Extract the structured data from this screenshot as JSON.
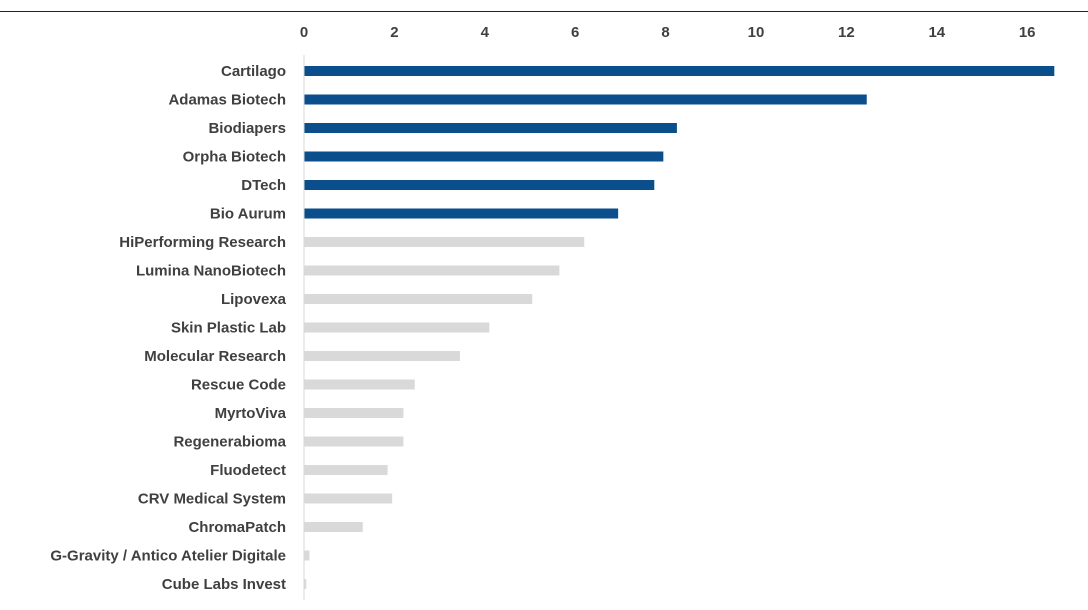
{
  "chart_data": {
    "type": "bar",
    "orientation": "horizontal",
    "title": "",
    "xlim": [
      0,
      17
    ],
    "x_ticks": [
      0,
      2,
      4,
      6,
      8,
      10,
      12,
      14,
      16
    ],
    "highlight_color": "#0a4f8c",
    "muted_color": "#d9d9d9",
    "highlight_count": 6,
    "categories": [
      "Cartilago",
      "Adamas Biotech",
      "Biodiapers",
      "Orpha Biotech",
      "DTech",
      "Bio Aurum",
      "HiPerforming Research",
      "Lumina NanoBiotech",
      "Lipovexa",
      "Skin Plastic Lab",
      "Molecular Research",
      "Rescue Code",
      "MyrtoViva",
      "Regenerabioma",
      "Fluodetect",
      "CRV Medical System",
      "ChromaPatch",
      "G-Gravity / Antico Atelier Digitale",
      "Cube Labs Invest"
    ],
    "values": [
      16.6,
      12.45,
      8.25,
      7.95,
      7.75,
      6.95,
      6.2,
      5.65,
      5.05,
      4.1,
      3.45,
      2.45,
      2.2,
      2.2,
      1.85,
      1.95,
      1.3,
      0.12,
      0.05
    ]
  }
}
